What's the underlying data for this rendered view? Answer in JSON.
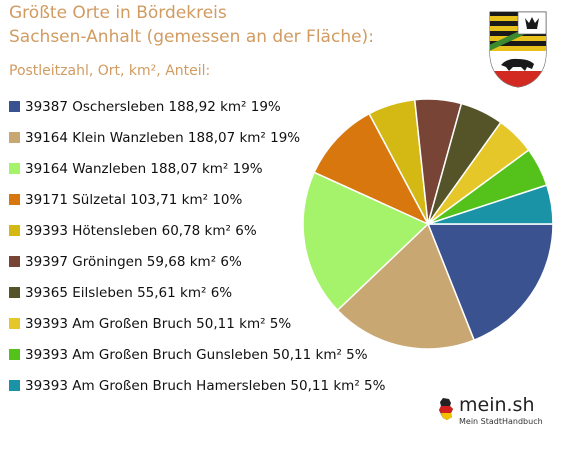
{
  "chart_data": {
    "type": "pie",
    "title": "Größte Orte in Bördekreis",
    "subtitle": "Sachsen-Anhalt (gemessen an der Fläche):",
    "legend_header": "Postleitzahl, Ort, km², Anteil:",
    "legend_placement": "left",
    "slices": [
      {
        "label": "39387 Oschersleben 188,92 km²  19%",
        "value": 188.92,
        "percent": 19,
        "color": "#3a5390"
      },
      {
        "label": "39164 Klein Wanzleben 188,07 km²  19%",
        "value": 188.07,
        "percent": 19,
        "color": "#c9a773"
      },
      {
        "label": "39164 Wanzleben 188,07 km²  19%",
        "value": 188.07,
        "percent": 19,
        "color": "#a4f36a"
      },
      {
        "label": "39171 Sülzetal 103,71 km²  10%",
        "value": 103.71,
        "percent": 10,
        "color": "#d8770d"
      },
      {
        "label": "39393 Hötensleben 60,78 km²  6%",
        "value": 60.78,
        "percent": 6,
        "color": "#d4b814"
      },
      {
        "label": "39397 Gröningen 59,68 km²  6%",
        "value": 59.68,
        "percent": 6,
        "color": "#774436"
      },
      {
        "label": "39365 Eilsleben 55,61 km²  6%",
        "value": 55.61,
        "percent": 6,
        "color": "#555328"
      },
      {
        "label": "39393 Am Großen Bruch 50,11 km²  5%",
        "value": 50.11,
        "percent": 5,
        "color": "#e6c72a"
      },
      {
        "label": "39393 Am Großen Bruch Gunsleben 50,11 km²  5%",
        "value": 50.11,
        "percent": 5,
        "color": "#55c21b"
      },
      {
        "label": "39393 Am Großen Bruch Hamersleben 50,11 km²  5%",
        "value": 50.11,
        "percent": 5,
        "color": "#1a93a6"
      }
    ]
  },
  "branding": {
    "name": "mein.sh",
    "tagline": "Mein StadtHandbuch"
  }
}
